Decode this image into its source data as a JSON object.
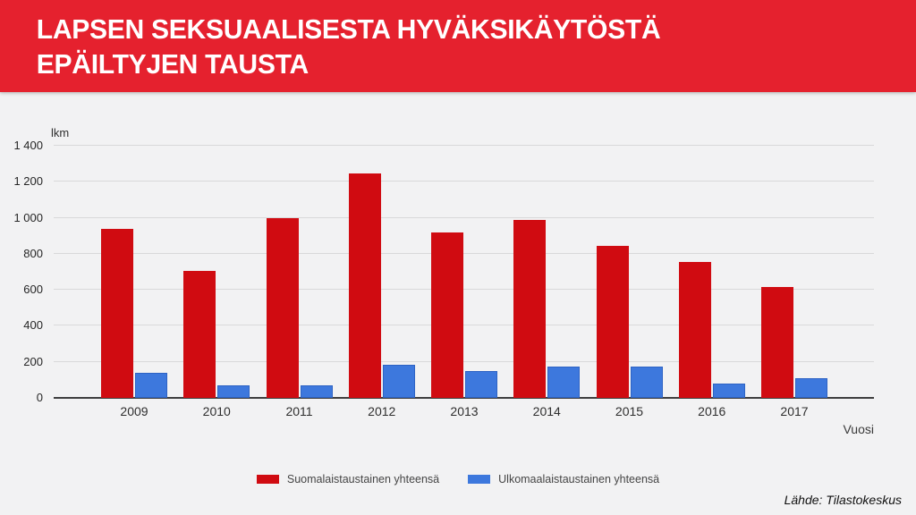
{
  "header": {
    "title_line1": "LAPSEN SEKSUAALISESTA HYVÄKSIKÄYTÖSTÄ",
    "title_line2": "EPÄILTYJEN TAUSTA"
  },
  "chart_data": {
    "type": "bar",
    "title": "Lapsen seksuaalisesta hyväksikäytöstä epäiltyjen tausta",
    "unit_label": "lkm",
    "xlabel": "Vuosi",
    "categories": [
      "2009",
      "2010",
      "2011",
      "2012",
      "2013",
      "2014",
      "2015",
      "2016",
      "2017"
    ],
    "series": [
      {
        "name": "Suomalaistaustainen yhteensä",
        "color": "#d00b11",
        "values": [
          940,
          705,
          1000,
          1245,
          920,
          990,
          845,
          755,
          615
        ]
      },
      {
        "name": "Ulkomaalaistaustainen yhteensä",
        "color": "#3d78dd",
        "values": [
          140,
          70,
          70,
          185,
          150,
          175,
          175,
          80,
          110
        ]
      }
    ],
    "ylim": [
      0,
      1400
    ],
    "yticks": [
      0,
      200,
      400,
      600,
      800,
      1000,
      1200,
      1400
    ],
    "ytick_labels": [
      "0",
      "200",
      "400",
      "600",
      "800",
      "1 000",
      "1 200",
      "1 400"
    ],
    "grid": true,
    "legend_position": "bottom"
  },
  "footer": {
    "source": "Lähde: Tilastokeskus"
  },
  "colors": {
    "banner": "#e5212e",
    "bar_red": "#d00b11",
    "bar_blue": "#3d78dd",
    "gridline": "#d9d9da"
  }
}
